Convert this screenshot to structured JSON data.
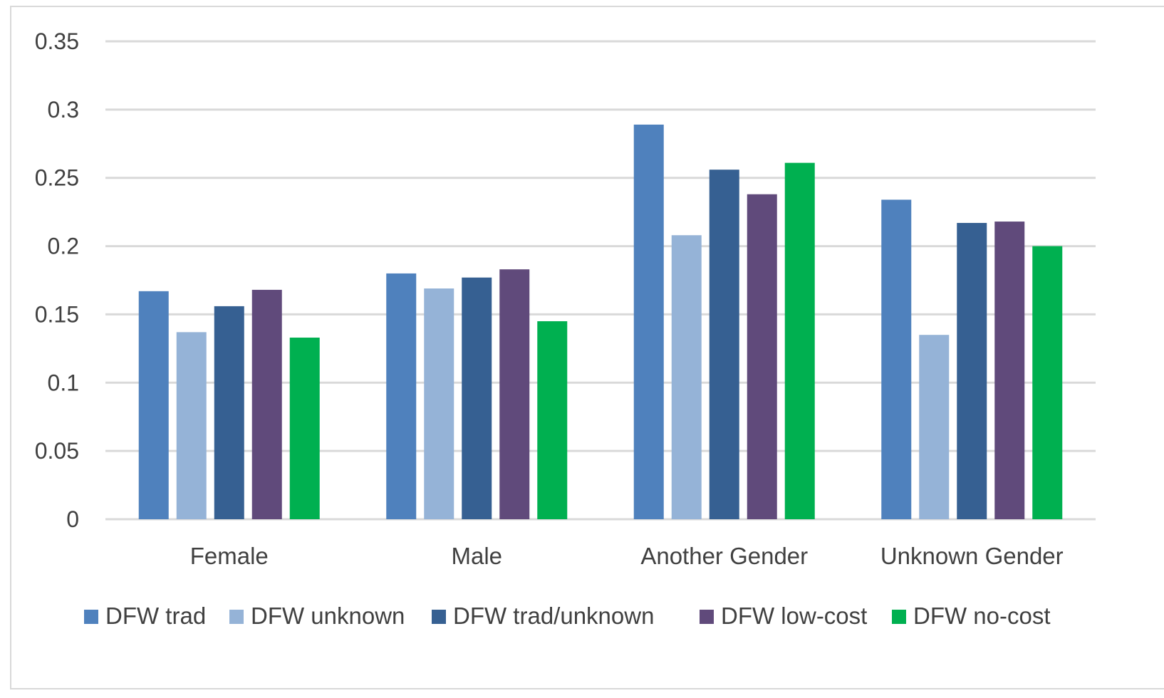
{
  "chart_data": {
    "type": "bar",
    "title": "",
    "xlabel": "",
    "ylabel": "",
    "categories": [
      "Female",
      "Male",
      "Another Gender",
      "Unknown Gender"
    ],
    "ylim": [
      0,
      0.35
    ],
    "yticks": [
      {
        "value": 0,
        "label": "0"
      },
      {
        "value": 0.05,
        "label": "0.05"
      },
      {
        "value": 0.1,
        "label": "0.1"
      },
      {
        "value": 0.15,
        "label": "0.15"
      },
      {
        "value": 0.2,
        "label": "0.2"
      },
      {
        "value": 0.25,
        "label": "0.25"
      },
      {
        "value": 0.3,
        "label": "0.3"
      },
      {
        "value": 0.35,
        "label": "0.35"
      }
    ],
    "grid": true,
    "legend_position": "bottom",
    "series": [
      {
        "name": "DFW trad",
        "color": "#4f81bd",
        "values": [
          0.167,
          0.18,
          0.289,
          0.234
        ]
      },
      {
        "name": "DFW unknown",
        "color": "#95b3d7",
        "values": [
          0.137,
          0.169,
          0.208,
          0.135
        ]
      },
      {
        "name": "DFW trad/unknown",
        "color": "#366092",
        "values": [
          0.156,
          0.177,
          0.256,
          0.217
        ]
      },
      {
        "name": "DFW low-cost",
        "color": "#604a7b",
        "values": [
          0.168,
          0.183,
          0.238,
          0.218
        ]
      },
      {
        "name": "DFW no-cost",
        "color": "#00b050",
        "values": [
          0.133,
          0.145,
          0.261,
          0.2
        ]
      }
    ]
  }
}
